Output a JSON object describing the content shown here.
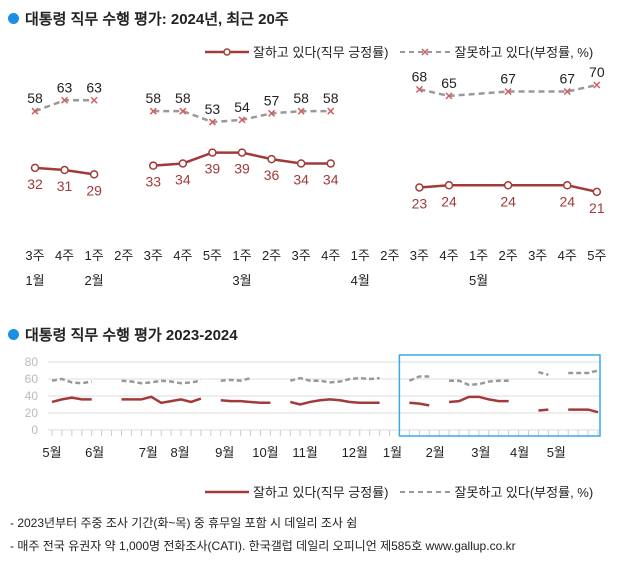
{
  "colors": {
    "positive": "#a33a3a",
    "negative": "#999999",
    "marker_x": "#d06060",
    "accent": "#1a8fe3",
    "highlight": "#3aa8e8"
  },
  "legend": {
    "positive": "잘하고 있다(직무 긍정률)",
    "negative": "잘못하고 있다(부정률, %)"
  },
  "footer": [
    "- 2023년부터 주중 조사 기간(화~목) 중 휴무일 포함 시 데일리 조사 쉼",
    "- 매주 전국 유권자 약 1,000명 전화조사(CATI). 한국갤럽 데일리 오피니언 제585호 www.gallup.co.kr"
  ],
  "chart_data": [
    {
      "type": "line",
      "title": "대통령 직무 수행 평가: 2024년, 최근 20주",
      "categories": [
        "3주",
        "4주",
        "1주",
        "2주",
        "3주",
        "4주",
        "5주",
        "1주",
        "2주",
        "3주",
        "4주",
        "1주",
        "2주",
        "3주",
        "4주",
        "1주",
        "2주",
        "3주",
        "4주",
        "5주"
      ],
      "months": [
        {
          "label": "1월",
          "index": 0
        },
        {
          "label": "2월",
          "index": 2
        },
        {
          "label": "3월",
          "index": 7
        },
        {
          "label": "4월",
          "index": 11
        },
        {
          "label": "5월",
          "index": 15
        }
      ],
      "segments": [
        [
          0,
          2
        ],
        [
          4,
          10
        ],
        [
          13,
          19
        ]
      ],
      "series": [
        {
          "name": "잘하고 있다(직무 긍정률)",
          "values": [
            32,
            31,
            29,
            null,
            33,
            34,
            39,
            39,
            36,
            34,
            34,
            null,
            null,
            23,
            24,
            null,
            24,
            null,
            24,
            21
          ]
        },
        {
          "name": "잘못하고 있다(부정률, %)",
          "values": [
            58,
            63,
            63,
            null,
            58,
            58,
            53,
            54,
            57,
            58,
            58,
            null,
            null,
            68,
            65,
            null,
            67,
            null,
            67,
            70
          ]
        }
      ],
      "ylim": [
        0,
        80
      ],
      "grid": false,
      "legend": "top-right"
    },
    {
      "type": "line",
      "title": "대통령 직무 수행 평가 2023-2024",
      "yticks": [
        0,
        20,
        40,
        60,
        80
      ],
      "ylim": [
        0,
        80
      ],
      "grid": true,
      "months": [
        {
          "label": "5월",
          "index": 0
        },
        {
          "label": "6월",
          "index": 4.3
        },
        {
          "label": "7월",
          "index": 9.7
        },
        {
          "label": "8월",
          "index": 12.9
        },
        {
          "label": "9월",
          "index": 17.4
        },
        {
          "label": "10월",
          "index": 21.5
        },
        {
          "label": "11월",
          "index": 25.5
        },
        {
          "label": "12월",
          "index": 30.5
        },
        {
          "label": "1월",
          "index": 34.3
        },
        {
          "label": "2월",
          "index": 38.6
        },
        {
          "label": "3월",
          "index": 43.2
        },
        {
          "label": "4월",
          "index": 47.1
        },
        {
          "label": "5월",
          "index": 50.8
        }
      ],
      "series": [
        {
          "name": "잘하고 있다(직무 긍정률)",
          "values": [
            33,
            36,
            38,
            36,
            36,
            null,
            null,
            36,
            36,
            36,
            39,
            32,
            34,
            36,
            33,
            37,
            null,
            35,
            34,
            34,
            33,
            32,
            32,
            null,
            33,
            30,
            33,
            35,
            36,
            35,
            33,
            32,
            32,
            32,
            null,
            null,
            32,
            31,
            29,
            null,
            33,
            34,
            39,
            39,
            36,
            34,
            34,
            null,
            null,
            23,
            24,
            null,
            24,
            24,
            24,
            21
          ]
        },
        {
          "name": "잘못하고 있다(부정률, %)",
          "values": [
            58,
            60,
            56,
            55,
            57,
            null,
            null,
            58,
            57,
            55,
            56,
            58,
            57,
            55,
            56,
            58,
            null,
            58,
            59,
            58,
            61,
            null,
            null,
            null,
            58,
            61,
            58,
            58,
            56,
            57,
            60,
            61,
            60,
            61,
            null,
            null,
            58,
            63,
            63,
            null,
            58,
            58,
            53,
            54,
            57,
            58,
            58,
            null,
            null,
            68,
            65,
            null,
            67,
            67,
            67,
            70
          ]
        }
      ],
      "legend": "bottom-right"
    }
  ]
}
